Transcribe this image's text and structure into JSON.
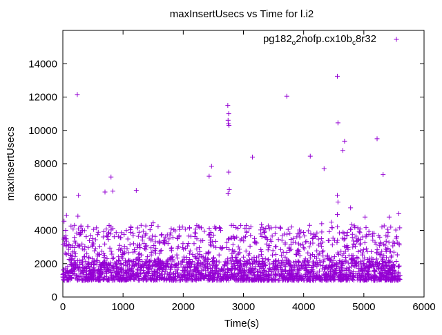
{
  "chart_data": {
    "type": "scatter",
    "title": "maxInsertUsecs vs Time for l.i2",
    "xlabel": "Time(s)",
    "ylabel": "maxInsertUsecs",
    "xlim": [
      0,
      6000
    ],
    "ylim": [
      0,
      16000
    ],
    "xticks": [
      0,
      1000,
      2000,
      3000,
      4000,
      5000,
      6000
    ],
    "yticks": [
      0,
      2000,
      4000,
      6000,
      8000,
      10000,
      12000,
      14000
    ],
    "xtick_labels": [
      "0",
      "1000",
      "2000",
      "3000",
      "4000",
      "5000",
      "6000"
    ],
    "ytick_labels": [
      "0",
      "2000",
      "4000",
      "6000",
      "8000",
      "10000",
      "12000",
      "14000"
    ],
    "grid": false,
    "legend_position": "top-right",
    "marker": "plus",
    "series": [
      {
        "name_parts": [
          "pg182",
          "o",
          "2nofp.cx10b",
          "c",
          "8r32"
        ],
        "color": "#9400d3",
        "points": [
          [
            240,
            12150
          ],
          [
            260,
            6100
          ],
          [
            700,
            6300
          ],
          [
            800,
            7200
          ],
          [
            830,
            6350
          ],
          [
            1220,
            6400
          ],
          [
            2430,
            7250
          ],
          [
            2470,
            7850
          ],
          [
            2740,
            11500
          ],
          [
            2755,
            11000
          ],
          [
            2745,
            10600
          ],
          [
            2750,
            10400
          ],
          [
            2760,
            10300
          ],
          [
            2755,
            7500
          ],
          [
            2745,
            6200
          ],
          [
            2765,
            6450
          ],
          [
            3150,
            8400
          ],
          [
            3720,
            12050
          ],
          [
            4110,
            8450
          ],
          [
            4340,
            7700
          ],
          [
            4560,
            13250
          ],
          [
            4570,
            10450
          ],
          [
            4650,
            8800
          ],
          [
            4680,
            9350
          ],
          [
            4560,
            6100
          ],
          [
            4570,
            5700
          ],
          [
            4780,
            5350
          ],
          [
            4560,
            4950
          ],
          [
            5220,
            9500
          ],
          [
            5320,
            7350
          ],
          [
            5580,
            5000
          ],
          [
            5420,
            4800
          ],
          [
            5020,
            4800
          ],
          [
            20,
            4550
          ],
          [
            60,
            4900
          ],
          [
            250,
            4850
          ],
          [
            1500,
            4450
          ],
          [
            4460,
            4500
          ],
          [
            0,
            1200
          ],
          [
            5600,
            1300
          ],
          [
            300,
            4200
          ],
          [
            800,
            4200
          ],
          [
            1300,
            4300
          ],
          [
            1800,
            4100
          ],
          [
            2300,
            4150
          ],
          [
            2800,
            4300
          ],
          [
            3300,
            4350
          ],
          [
            3800,
            4200
          ],
          [
            4300,
            4400
          ],
          [
            4800,
            4350
          ],
          [
            5300,
            4200
          ]
        ]
      }
    ],
    "dense_band": {
      "x_range": [
        0,
        5600
      ],
      "core_y_range": [
        1000,
        2200
      ],
      "upper_y_range": [
        2200,
        4300
      ],
      "note_visible": false
    }
  }
}
